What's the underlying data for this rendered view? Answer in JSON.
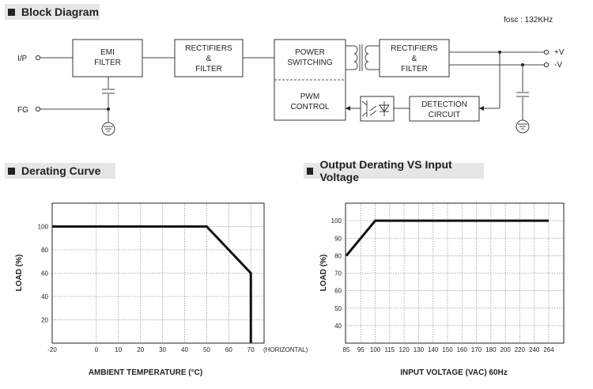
{
  "block_diagram": {
    "heading": "Block Diagram",
    "fosc": "fosc : 132KHz",
    "ip_label": "I/P",
    "fg_label": "FG",
    "pos_label": "+V",
    "neg_label": "-V",
    "emi": [
      "EMI",
      "FILTER"
    ],
    "rect1": [
      "RECTIFIERS",
      "&",
      "FILTER"
    ],
    "power": [
      "POWER",
      "SWITCHING"
    ],
    "pwm": [
      "PWM",
      "CONTROL"
    ],
    "rect2": [
      "RECTIFIERS",
      "&",
      "FILTER"
    ],
    "detect": [
      "DETECTION",
      "CIRCUIT"
    ]
  },
  "derating_heading": "Derating Curve",
  "output_heading": "Output Derating VS Input Voltage",
  "chart_data": [
    {
      "type": "line",
      "xlabel": "AMBIENT TEMPERATURE (°C)",
      "ylabel": "LOAD (%)",
      "x_note": "(HORIZONTAL)",
      "xticks": [
        "-20",
        "0",
        "10",
        "20",
        "30",
        "40",
        "50",
        "60",
        "70"
      ],
      "yticks": [
        "20",
        "40",
        "60",
        "80",
        "100"
      ],
      "xlim": [
        -20,
        76
      ],
      "ylim": [
        0,
        120
      ],
      "series": [
        {
          "x": [
            -20,
            50,
            70,
            70
          ],
          "y": [
            100,
            100,
            60,
            0
          ]
        }
      ]
    },
    {
      "type": "line",
      "xlabel": "INPUT VOLTAGE (VAC) 60Hz",
      "ylabel": "LOAD (%)",
      "xticks": [
        "85",
        "95",
        "100",
        "115",
        "120",
        "130",
        "140",
        "150",
        "160",
        "170",
        "180",
        "200",
        "220",
        "240",
        "264"
      ],
      "yticks": [
        "40",
        "50",
        "60",
        "70",
        "80",
        "90",
        "100"
      ],
      "ylim": [
        30,
        110
      ],
      "series": [
        {
          "x": [
            "85",
            "100",
            "264"
          ],
          "y": [
            80,
            100,
            100
          ]
        }
      ]
    }
  ]
}
